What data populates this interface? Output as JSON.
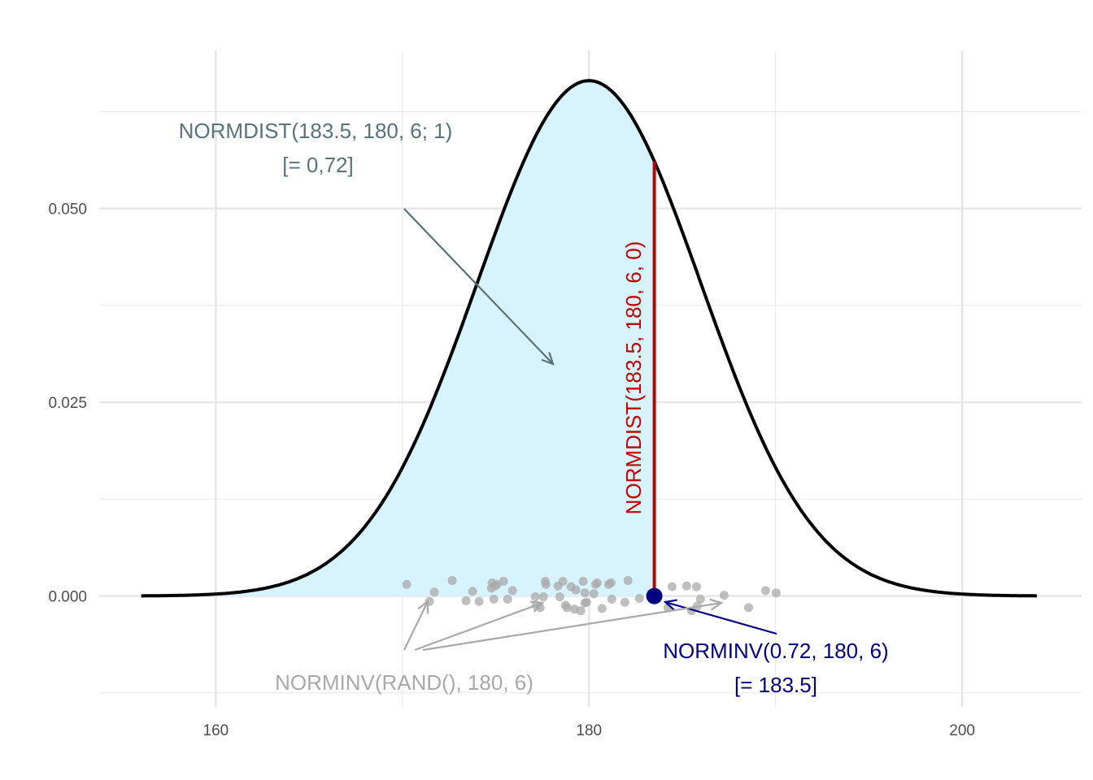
{
  "chart_data": {
    "type": "line",
    "title": "",
    "xlabel": "",
    "ylabel": "",
    "xlim": [
      153.75,
      206.4
    ],
    "ylim": [
      -0.0143,
      0.0704
    ],
    "grid": true,
    "x_ticks": [
      160,
      180,
      200
    ],
    "x_tick_labels": [
      "160",
      "180",
      "200"
    ],
    "y_ticks": [
      0,
      0.025,
      0.05
    ],
    "y_tick_labels": [
      "0.000",
      "0.025",
      "0.050"
    ],
    "distribution": {
      "mean": 180,
      "sd": 6,
      "x_range": [
        156,
        204
      ]
    },
    "shaded_upper": 183.5,
    "shade_color": "#d6f3fe",
    "vline": {
      "x": 183.5,
      "y": 0.0561,
      "color": "#c00000",
      "label": "NORMDIST(183.5, 180, 6, 0)"
    },
    "point": {
      "x": 183.5,
      "y": 0,
      "color": "#000080"
    },
    "jitter_points": {
      "color": "#a9a9a9",
      "x": [
        170.23,
        171.71,
        171.45,
        172.67,
        173.41,
        173.76,
        174.11,
        174.81,
        174.77,
        174.98,
        175.07,
        175.42,
        175.64,
        175.9,
        174.9,
        177.12,
        177.17,
        177.38,
        177.65,
        177.69,
        177.56,
        178.34,
        178.43,
        178.6,
        178.74,
        178.82,
        179.04,
        179.22,
        179.3,
        179.56,
        179.69,
        179.78,
        179.87,
        179.78,
        180.26,
        180.35,
        180.44,
        180.7,
        181.05,
        181.18,
        181.22,
        181.92,
        182.09,
        182.7,
        184.45,
        185.23,
        185.76,
        184.23,
        185.49,
        185.97,
        185.8,
        187.24,
        188.55,
        189.46,
        190.03
      ],
      "y": [
        0.0015,
        0.0005,
        -0.0007,
        0.002,
        -0.0006,
        0.0006,
        -0.0007,
        0.0017,
        0.001,
        0.0013,
        0.0015,
        0.0019,
        -0.0004,
        0.0007,
        -0.0004,
        -0.0001,
        -0.0012,
        -0.0015,
        0.0019,
        0.0015,
        -0.0001,
        0.0013,
        -0.0001,
        0.0019,
        -0.0012,
        -0.0015,
        0.0012,
        -0.0017,
        0.0008,
        -0.0019,
        0.0019,
        0.0004,
        -0.0008,
        -0.0009,
        0.0003,
        0.0015,
        0.0017,
        -0.0016,
        0.0015,
        0.0017,
        -0.0004,
        -0.0008,
        0.002,
        -0.0003,
        0.0012,
        0.0013,
        0.0012,
        -0.0015,
        -0.0019,
        -0.0004,
        -0.0013,
        0.0001,
        -0.0015,
        0.0007,
        0.0004
      ]
    },
    "annotations": {
      "cdf": {
        "line1": "NORMDIST(183.5, 180, 6; 1)",
        "line2": "[= 0,72]",
        "color": "#5a737b"
      },
      "inv": {
        "line1": "NORMINV(0.72, 180, 6)",
        "line2": "[= 183.5]",
        "color": "#000080"
      },
      "rand": {
        "line1": "NORMINV(RAND(), 180, 6)",
        "color": "#a9a9a9"
      }
    }
  }
}
